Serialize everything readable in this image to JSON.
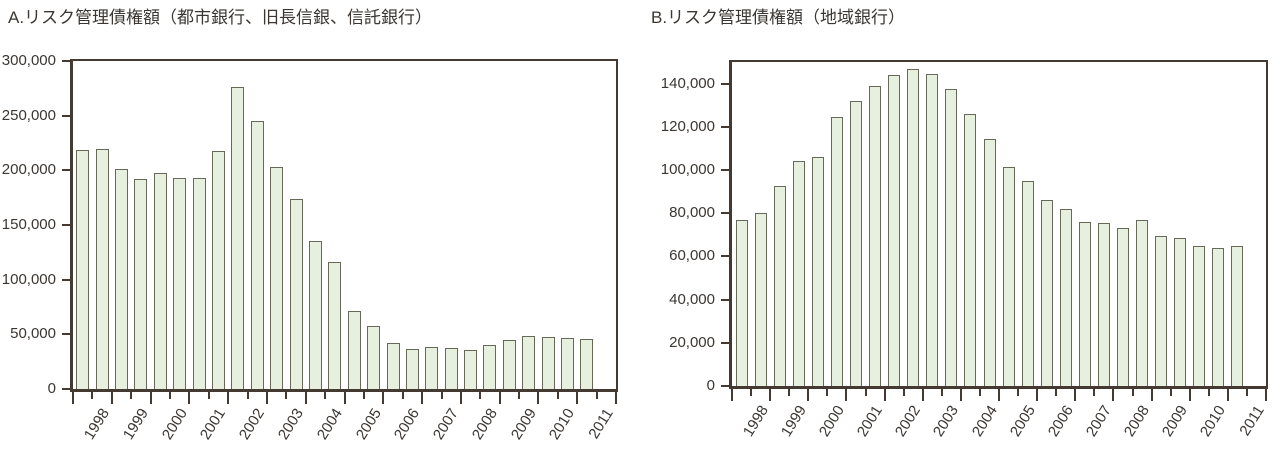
{
  "colors": {
    "background": "#ffffff",
    "bar_fill": "#e7f0de",
    "bar_border": "#666858",
    "frame": "#443a32",
    "text": "#3b3632"
  },
  "chart_data": [
    {
      "type": "bar",
      "panel": "A",
      "title": "A.リスク管理債権額（都市銀行、旧長信銀、信託銀行）",
      "categories": [
        "1998",
        "1999",
        "2000",
        "2001",
        "2002",
        "2003",
        "2004",
        "2005",
        "2006",
        "2007",
        "2008",
        "2009",
        "2010",
        "2011"
      ],
      "bars_per_year": 2,
      "values": [
        219000,
        220000,
        201000,
        192000,
        198000,
        193000,
        193000,
        218000,
        276000,
        245000,
        203000,
        174000,
        135000,
        116000,
        71000,
        58000,
        42500,
        37000,
        38500,
        37500,
        35500,
        40500,
        45000,
        48500,
        47500,
        47000,
        46000
      ],
      "xlabel": "",
      "ylabel": "",
      "ylim": [
        0,
        300000
      ],
      "ytick_step": 50000,
      "ytick_max": 300000,
      "grid": false,
      "legend": null
    },
    {
      "type": "bar",
      "panel": "B",
      "title": "B.リスク管理債権額（地域銀行）",
      "categories": [
        "1998",
        "1999",
        "2000",
        "2001",
        "2002",
        "2003",
        "2004",
        "2005",
        "2006",
        "2007",
        "2008",
        "2009",
        "2010",
        "2011"
      ],
      "bars_per_year": 2,
      "values": [
        77000,
        80000,
        92500,
        104000,
        106000,
        124500,
        132000,
        139000,
        144000,
        147000,
        144500,
        137500,
        126000,
        114500,
        101500,
        95000,
        86000,
        82000,
        76000,
        75500,
        73000,
        77000,
        69500,
        68500,
        65000,
        64000,
        65000
      ],
      "xlabel": "",
      "ylabel": "",
      "ylim": [
        0,
        150000
      ],
      "ytick_step": 20000,
      "ytick_max": 140000,
      "grid": false,
      "legend": null
    }
  ]
}
